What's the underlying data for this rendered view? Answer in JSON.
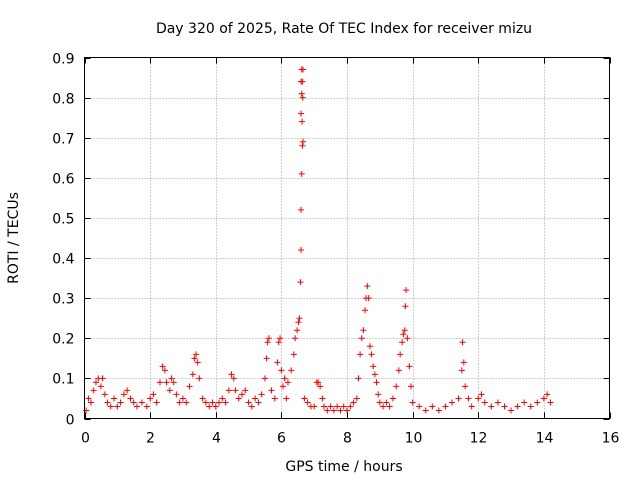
{
  "chart_data": {
    "type": "scatter",
    "title": "Day 320 of 2025, Rate Of TEC Index for receiver mizu",
    "xlabel": "GPS time / hours",
    "ylabel": "ROTI / TECUs",
    "xlim": [
      0,
      16
    ],
    "ylim": [
      0,
      0.9
    ],
    "xticks": [
      0,
      2,
      4,
      6,
      8,
      10,
      12,
      14,
      16
    ],
    "yticks": [
      0,
      0.1,
      0.2,
      0.3,
      0.4,
      0.5,
      0.6,
      0.7,
      0.8,
      0.9
    ],
    "ytick_labels": [
      "0",
      "0.1",
      "0.2",
      "0.3",
      "0.4",
      "0.5",
      "0.6",
      "0.7",
      "0.8",
      "0.9"
    ],
    "grid": true,
    "marker": "+",
    "color": "#ff0000",
    "series": [
      {
        "name": "ROTI",
        "points": [
          [
            0.05,
            0.02
          ],
          [
            0.12,
            0.05
          ],
          [
            0.2,
            0.04
          ],
          [
            0.28,
            0.07
          ],
          [
            0.35,
            0.09
          ],
          [
            0.42,
            0.1
          ],
          [
            0.5,
            0.08
          ],
          [
            0.55,
            0.1
          ],
          [
            0.62,
            0.06
          ],
          [
            0.7,
            0.04
          ],
          [
            0.8,
            0.03
          ],
          [
            0.9,
            0.05
          ],
          [
            1.0,
            0.03
          ],
          [
            1.1,
            0.04
          ],
          [
            1.2,
            0.06
          ],
          [
            1.3,
            0.07
          ],
          [
            1.4,
            0.05
          ],
          [
            1.5,
            0.04
          ],
          [
            1.6,
            0.03
          ],
          [
            1.75,
            0.04
          ],
          [
            1.9,
            0.03
          ],
          [
            2.0,
            0.05
          ],
          [
            2.1,
            0.06
          ],
          [
            2.2,
            0.04
          ],
          [
            2.3,
            0.09
          ],
          [
            2.38,
            0.13
          ],
          [
            2.45,
            0.12
          ],
          [
            2.5,
            0.09
          ],
          [
            2.6,
            0.07
          ],
          [
            2.65,
            0.1
          ],
          [
            2.72,
            0.09
          ],
          [
            2.8,
            0.06
          ],
          [
            2.9,
            0.04
          ],
          [
            3.0,
            0.05
          ],
          [
            3.1,
            0.04
          ],
          [
            3.2,
            0.08
          ],
          [
            3.3,
            0.11
          ],
          [
            3.35,
            0.15
          ],
          [
            3.4,
            0.16
          ],
          [
            3.45,
            0.14
          ],
          [
            3.5,
            0.1
          ],
          [
            3.6,
            0.05
          ],
          [
            3.7,
            0.04
          ],
          [
            3.8,
            0.03
          ],
          [
            3.9,
            0.04
          ],
          [
            4.0,
            0.03
          ],
          [
            4.1,
            0.04
          ],
          [
            4.2,
            0.05
          ],
          [
            4.3,
            0.04
          ],
          [
            4.4,
            0.07
          ],
          [
            4.48,
            0.11
          ],
          [
            4.55,
            0.1
          ],
          [
            4.6,
            0.07
          ],
          [
            4.7,
            0.05
          ],
          [
            4.8,
            0.06
          ],
          [
            4.9,
            0.07
          ],
          [
            5.0,
            0.04
          ],
          [
            5.1,
            0.03
          ],
          [
            5.2,
            0.05
          ],
          [
            5.3,
            0.04
          ],
          [
            5.4,
            0.06
          ],
          [
            5.5,
            0.1
          ],
          [
            5.55,
            0.15
          ],
          [
            5.58,
            0.19
          ],
          [
            5.62,
            0.2
          ],
          [
            5.7,
            0.07
          ],
          [
            5.8,
            0.05
          ],
          [
            5.88,
            0.14
          ],
          [
            5.92,
            0.19
          ],
          [
            5.96,
            0.2
          ],
          [
            6.0,
            0.12
          ],
          [
            6.05,
            0.08
          ],
          [
            6.1,
            0.1
          ],
          [
            6.15,
            0.05
          ],
          [
            6.2,
            0.09
          ],
          [
            6.3,
            0.12
          ],
          [
            6.38,
            0.16
          ],
          [
            6.42,
            0.2
          ],
          [
            6.48,
            0.22
          ],
          [
            6.52,
            0.24
          ],
          [
            6.55,
            0.25
          ],
          [
            6.58,
            0.34
          ],
          [
            6.6,
            0.42
          ],
          [
            6.6,
            0.52
          ],
          [
            6.62,
            0.61
          ],
          [
            6.64,
            0.68
          ],
          [
            6.66,
            0.69
          ],
          [
            6.6,
            0.76
          ],
          [
            6.63,
            0.74
          ],
          [
            6.62,
            0.81
          ],
          [
            6.65,
            0.8
          ],
          [
            6.6,
            0.84
          ],
          [
            6.64,
            0.84
          ],
          [
            6.62,
            0.87
          ],
          [
            6.66,
            0.87
          ],
          [
            6.7,
            0.05
          ],
          [
            6.8,
            0.04
          ],
          [
            6.9,
            0.03
          ],
          [
            7.0,
            0.03
          ],
          [
            7.08,
            0.09
          ],
          [
            7.12,
            0.09
          ],
          [
            7.18,
            0.08
          ],
          [
            7.25,
            0.05
          ],
          [
            7.3,
            0.03
          ],
          [
            7.4,
            0.02
          ],
          [
            7.5,
            0.03
          ],
          [
            7.6,
            0.02
          ],
          [
            7.7,
            0.03
          ],
          [
            7.8,
            0.02
          ],
          [
            7.9,
            0.03
          ],
          [
            8.0,
            0.02
          ],
          [
            8.1,
            0.03
          ],
          [
            8.2,
            0.04
          ],
          [
            8.3,
            0.05
          ],
          [
            8.35,
            0.1
          ],
          [
            8.4,
            0.16
          ],
          [
            8.45,
            0.2
          ],
          [
            8.5,
            0.22
          ],
          [
            8.55,
            0.27
          ],
          [
            8.58,
            0.3
          ],
          [
            8.62,
            0.33
          ],
          [
            8.66,
            0.3
          ],
          [
            8.7,
            0.18
          ],
          [
            8.75,
            0.16
          ],
          [
            8.8,
            0.13
          ],
          [
            8.85,
            0.11
          ],
          [
            8.9,
            0.09
          ],
          [
            8.95,
            0.06
          ],
          [
            9.0,
            0.04
          ],
          [
            9.1,
            0.03
          ],
          [
            9.2,
            0.04
          ],
          [
            9.3,
            0.03
          ],
          [
            9.4,
            0.05
          ],
          [
            9.5,
            0.08
          ],
          [
            9.58,
            0.12
          ],
          [
            9.62,
            0.16
          ],
          [
            9.68,
            0.19
          ],
          [
            9.72,
            0.21
          ],
          [
            9.76,
            0.22
          ],
          [
            9.78,
            0.28
          ],
          [
            9.8,
            0.32
          ],
          [
            9.84,
            0.2
          ],
          [
            9.9,
            0.13
          ],
          [
            9.95,
            0.08
          ],
          [
            10.0,
            0.04
          ],
          [
            10.2,
            0.03
          ],
          [
            10.4,
            0.02
          ],
          [
            10.6,
            0.03
          ],
          [
            10.8,
            0.02
          ],
          [
            11.0,
            0.03
          ],
          [
            11.2,
            0.04
          ],
          [
            11.4,
            0.05
          ],
          [
            11.5,
            0.12
          ],
          [
            11.52,
            0.19
          ],
          [
            11.56,
            0.14
          ],
          [
            11.6,
            0.08
          ],
          [
            11.7,
            0.05
          ],
          [
            11.8,
            0.03
          ],
          [
            12.0,
            0.05
          ],
          [
            12.1,
            0.06
          ],
          [
            12.2,
            0.04
          ],
          [
            12.4,
            0.03
          ],
          [
            12.6,
            0.04
          ],
          [
            12.8,
            0.03
          ],
          [
            13.0,
            0.02
          ],
          [
            13.2,
            0.03
          ],
          [
            13.4,
            0.04
          ],
          [
            13.6,
            0.03
          ],
          [
            13.8,
            0.04
          ],
          [
            14.0,
            0.05
          ],
          [
            14.1,
            0.06
          ],
          [
            14.2,
            0.04
          ]
        ]
      }
    ]
  }
}
